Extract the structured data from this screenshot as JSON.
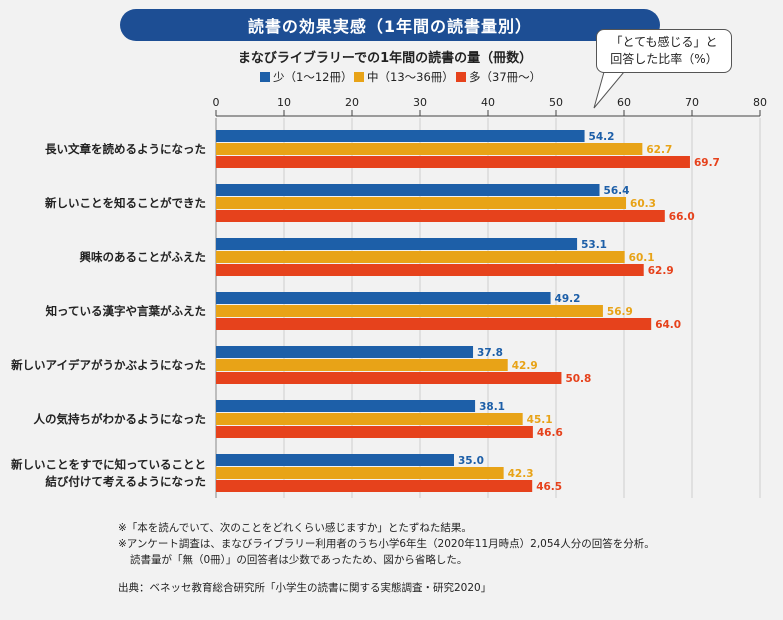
{
  "title": "読書の効果実感（1年間の読書量別）",
  "callout": {
    "line1": "「とても感じる」と",
    "line2": "回答した比率（%）"
  },
  "notes": [
    "※「本を読んでいて、次のことをどれくらい感じますか」とたずねた結果。",
    "※アンケート調査は、まなびライブラリー利用者のうち小学6年生（2020年11月時点）2,054人分の回答を分析。",
    "読書量が「無（0冊）」の回答者は少数であったため、図から省略した。"
  ],
  "source": "出典：ベネッセ教育総合研究所「小学生の読書に関する実態調査・研究2020」",
  "chart_data": {
    "type": "bar",
    "orientation": "horizontal",
    "subtitle": "まなびライブラリーでの1年間の読書の量（冊数）",
    "categories": [
      [
        "長い文章を読めるようになった"
      ],
      [
        "新しいことを知ることができた"
      ],
      [
        "興味のあることがふえた"
      ],
      [
        "知っている漢字や言葉がふえた"
      ],
      [
        "新しいアイデアがうかぶようになった"
      ],
      [
        "人の気持ちがわかるようになった"
      ],
      [
        "新しいことをすでに知っていることと",
        "結び付けて考えるようになった"
      ]
    ],
    "series": [
      {
        "name": "少（1～12冊）",
        "color": "#1d5fa8",
        "values": [
          54.2,
          56.4,
          53.1,
          49.2,
          37.8,
          38.1,
          35.0
        ]
      },
      {
        "name": "中（13～36冊）",
        "color": "#e8a317",
        "values": [
          62.7,
          60.3,
          60.1,
          56.9,
          42.9,
          45.1,
          42.3
        ]
      },
      {
        "name": "多（37冊～）",
        "color": "#e6421c",
        "values": [
          69.7,
          66.0,
          62.9,
          64.0,
          50.8,
          46.6,
          46.5
        ]
      }
    ],
    "xlim": [
      0,
      80
    ],
    "ticks": [
      0,
      10,
      20,
      30,
      40,
      50,
      60,
      70,
      80
    ],
    "grid": true,
    "legend": "top"
  }
}
